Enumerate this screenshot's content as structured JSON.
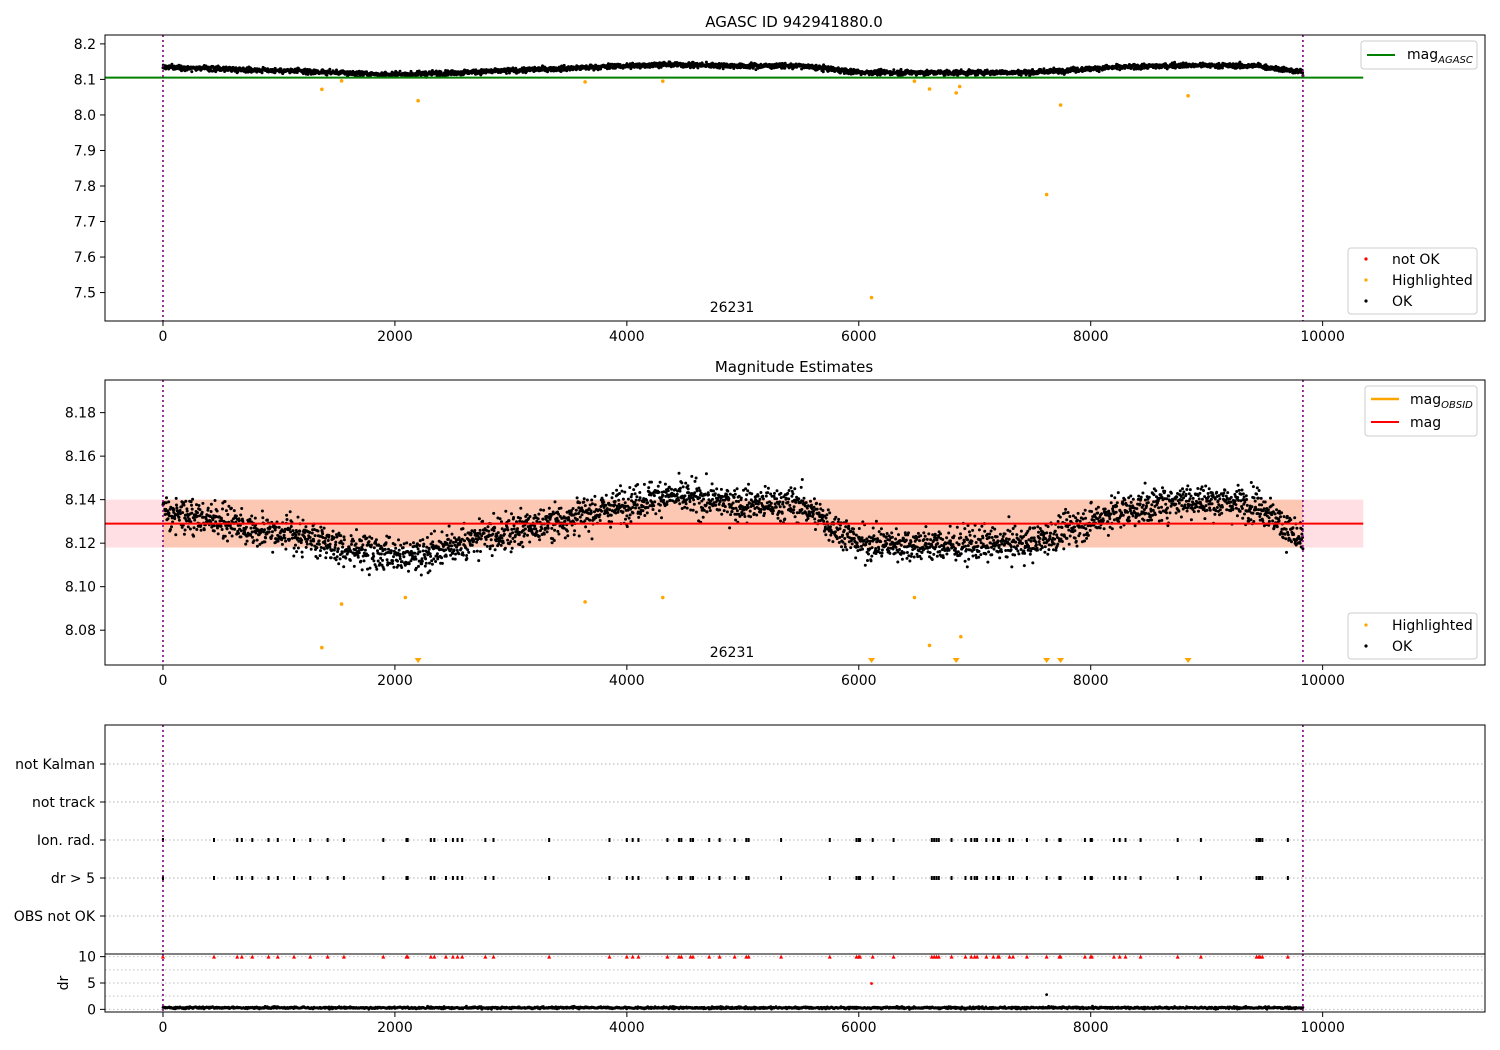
{
  "chart_data": [
    {
      "type": "scatter",
      "title": "AGASC ID 942941880.0",
      "xlim": [
        -500,
        11400
      ],
      "ylim": [
        7.42,
        8.225
      ],
      "xticks": [
        0,
        2000,
        4000,
        6000,
        8000,
        10000
      ],
      "yticks": [
        7.5,
        7.6,
        7.7,
        7.8,
        7.9,
        8.0,
        8.1,
        8.2
      ],
      "obsid_label": "26231",
      "vlines": [
        0,
        9830
      ],
      "reference_line": {
        "name": "mag_AGASC",
        "y": 8.105,
        "x": [
          -500,
          10350
        ],
        "color": "#008000"
      },
      "ok_trend": {
        "x": [
          0,
          1000,
          2000,
          3000,
          4300,
          5000,
          5500,
          6000,
          6700,
          7500,
          8200,
          8800,
          9450,
          9830
        ],
        "y": [
          8.135,
          8.125,
          8.113,
          8.125,
          8.142,
          8.138,
          8.138,
          8.12,
          8.119,
          8.12,
          8.134,
          8.14,
          8.138,
          8.12
        ],
        "scatter": 0.007,
        "n_points": 3200
      },
      "highlighted": {
        "x": [
          1370,
          1540,
          2200,
          3640,
          4310,
          6110,
          6480,
          6610,
          6840,
          6870,
          7620,
          7740,
          8840
        ],
        "y": [
          8.072,
          8.096,
          8.04,
          8.093,
          8.095,
          7.486,
          8.095,
          8.073,
          8.062,
          8.08,
          7.776,
          8.028,
          8.054
        ]
      },
      "not_ok": {
        "x": [],
        "y": []
      },
      "legend_upper": [
        {
          "label": "mag",
          "sub": "AGASC",
          "color": "#008000",
          "kind": "line"
        }
      ],
      "legend_lower": [
        {
          "label": "not OK",
          "color": "#ff0000",
          "kind": "dot"
        },
        {
          "label": "Highlighted",
          "color": "#ffa500",
          "kind": "dot"
        },
        {
          "label": "OK",
          "color": "#000000",
          "kind": "dot"
        }
      ]
    },
    {
      "type": "scatter",
      "title": "Magnitude Estimates",
      "xlim": [
        -500,
        11400
      ],
      "ylim": [
        8.064,
        8.195
      ],
      "xticks": [
        0,
        2000,
        4000,
        6000,
        8000,
        10000
      ],
      "yticks": [
        8.08,
        8.1,
        8.12,
        8.14,
        8.16,
        8.18
      ],
      "obsid_label": "26231",
      "vlines": [
        0,
        9830
      ],
      "mag_line": {
        "name": "mag",
        "y": 8.129,
        "x": [
          -500,
          10350
        ],
        "color": "#ff0000"
      },
      "mag_obsid_band": {
        "x": [
          0,
          9830
        ],
        "y": [
          8.118,
          8.14
        ],
        "color": "#f9b58c"
      },
      "mag_band": {
        "x": [
          -500,
          10350
        ],
        "y": [
          8.118,
          8.14
        ],
        "color": "#ffdfe3"
      },
      "ok_trend": {
        "x": [
          0,
          1000,
          2000,
          3000,
          4300,
          5000,
          5500,
          6000,
          6700,
          7500,
          8200,
          8800,
          9450,
          9830
        ],
        "y": [
          8.135,
          8.125,
          8.113,
          8.125,
          8.142,
          8.138,
          8.138,
          8.12,
          8.119,
          8.12,
          8.134,
          8.14,
          8.138,
          8.12
        ],
        "scatter": 0.007,
        "n_points": 3200
      },
      "highlighted": {
        "x": [
          1370,
          1540,
          2090,
          3640,
          4310,
          6480,
          6610,
          6880
        ],
        "y": [
          8.072,
          8.092,
          8.095,
          8.093,
          8.095,
          8.095,
          8.073,
          8.077
        ]
      },
      "highlighted_offscale": {
        "x": [
          2200,
          6110,
          6840,
          7620,
          7740,
          8840
        ]
      },
      "legend_upper": [
        {
          "label": "mag",
          "sub": "OBSID",
          "color": "#ffa500",
          "kind": "line"
        },
        {
          "label": "mag",
          "sub": "",
          "color": "#ff0000",
          "kind": "line"
        }
      ],
      "legend_lower": [
        {
          "label": "Highlighted",
          "color": "#ffa500",
          "kind": "dot"
        },
        {
          "label": "OK",
          "color": "#000000",
          "kind": "dot"
        }
      ]
    },
    {
      "type": "scatter",
      "xlim": [
        -500,
        11400
      ],
      "vlines": [
        0,
        9830
      ],
      "flag_rows": [
        "not Kalman",
        "not track",
        "Ion. rad.",
        "dr > 5",
        "OBS not OK"
      ],
      "flag_events": {
        "Ion. rad.": [
          0,
          440,
          640,
          680,
          770,
          910,
          990,
          1130,
          1270,
          1420,
          1560,
          1900,
          2100,
          2110,
          2310,
          2340,
          2440,
          2500,
          2540,
          2580,
          2780,
          2850,
          3330,
          3850,
          4000,
          4050,
          4100,
          4350,
          4450,
          4470,
          4550,
          4570,
          4710,
          4800,
          4930,
          5030,
          5050,
          5330,
          5750,
          5980,
          6000,
          6010,
          6120,
          6300,
          6630,
          6650,
          6670,
          6690,
          6800,
          6920,
          6970,
          7000,
          7020,
          7100,
          7160,
          7200,
          7210,
          7300,
          7330,
          7450,
          7620,
          7730,
          7740,
          7950,
          8000,
          8010,
          8200,
          8250,
          8300,
          8430,
          8750,
          8950,
          9430,
          9450,
          9460,
          9480,
          9700
        ],
        "dr > 5": [
          0,
          440,
          640,
          680,
          770,
          910,
          990,
          1130,
          1270,
          1420,
          1560,
          1900,
          2100,
          2110,
          2310,
          2340,
          2440,
          2500,
          2540,
          2580,
          2780,
          2850,
          3330,
          3850,
          4000,
          4050,
          4100,
          4350,
          4450,
          4470,
          4550,
          4570,
          4710,
          4800,
          4930,
          5030,
          5050,
          5330,
          5750,
          5980,
          6000,
          6010,
          6120,
          6300,
          6630,
          6650,
          6670,
          6690,
          6800,
          6920,
          6970,
          7000,
          7020,
          7100,
          7160,
          7200,
          7210,
          7300,
          7330,
          7450,
          7620,
          7730,
          7740,
          7950,
          8000,
          8010,
          8200,
          8250,
          8300,
          8430,
          8750,
          8950,
          9430,
          9450,
          9460,
          9480,
          9700
        ]
      }
    },
    {
      "type": "scatter",
      "xlim": [
        -500,
        11400
      ],
      "ylim": [
        -0.5,
        10.5
      ],
      "xticks": [
        0,
        2000,
        4000,
        6000,
        8000,
        10000
      ],
      "yticks": [
        0,
        5,
        10
      ],
      "ylabel": "dr",
      "vlines": [
        0,
        9830
      ],
      "dr_baseline": {
        "y": 0.3,
        "scatter": 0.2,
        "n_points": 2000,
        "x": [
          0,
          9830
        ]
      },
      "dr_outliers": [
        {
          "x": 6110,
          "y": 4.9,
          "color": "#ff0000"
        },
        {
          "x": 7620,
          "y": 2.8,
          "color": "#000000"
        }
      ],
      "dr_clipped_y": 10
    }
  ]
}
